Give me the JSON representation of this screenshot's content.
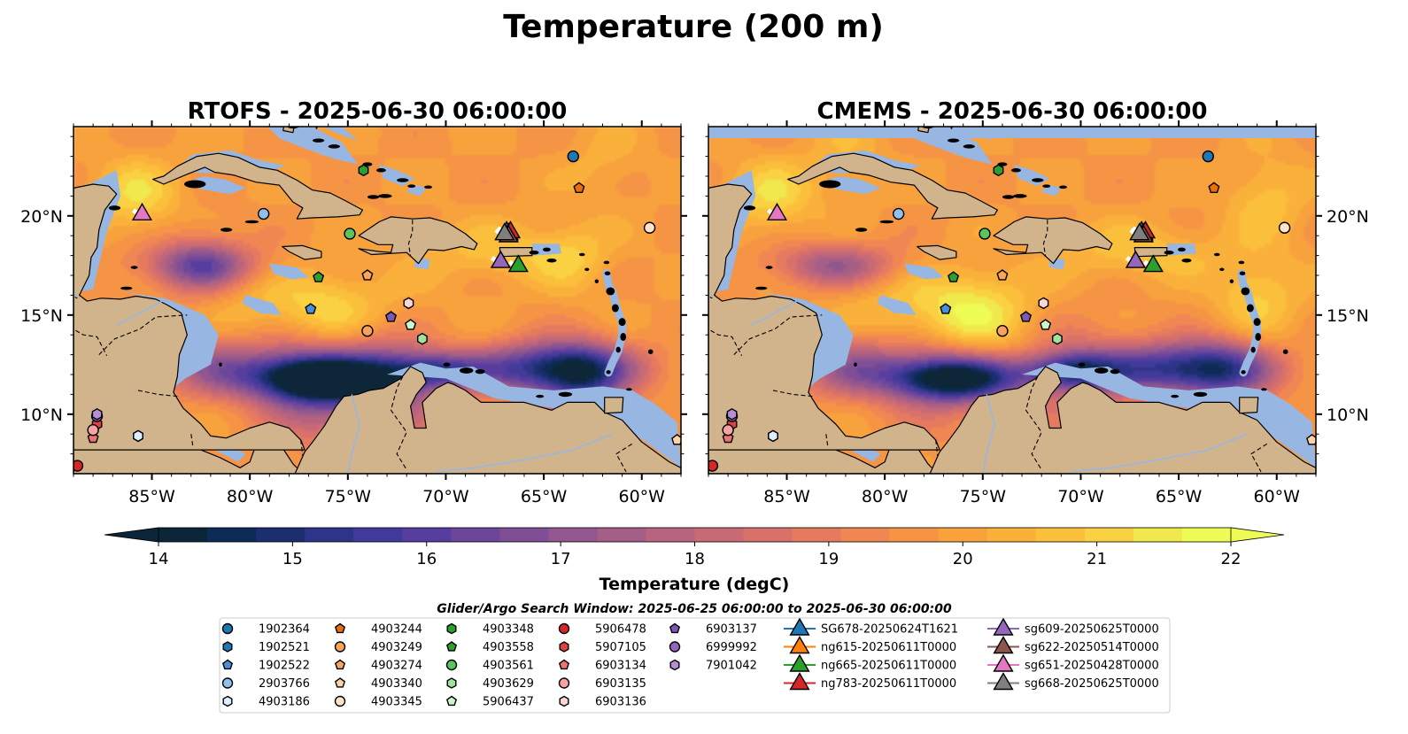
{
  "figure": {
    "suptitle": "Temperature (200 m)",
    "search_window": "Glider/Argo Search Window: 2025-06-25 06:00:00 to 2025-06-30 06:00:00"
  },
  "chart_data": {
    "type": "heatmap",
    "panels": [
      {
        "title": "RTOFS - 2025-06-30 06:00:00",
        "ylabel_side": "left",
        "noise": [
          {
            "lon": -76.5,
            "lat": 12.0,
            "dt": -3.0,
            "r": 3.0
          },
          {
            "lon": -73.0,
            "lat": 11.3,
            "dt": -2.5,
            "r": 2.6
          },
          {
            "lon": -63.0,
            "lat": 11.5,
            "dt": -2.2,
            "r": 2.0
          },
          {
            "lon": -82.5,
            "lat": 17.5,
            "dt": -1.2,
            "r": 2.0
          },
          {
            "lon": -76.0,
            "lat": 14.2,
            "dt": 1.0,
            "r": 2.2
          },
          {
            "lon": -63.5,
            "lat": 17.8,
            "dt": 0.8,
            "r": 1.8
          },
          {
            "lon": -62.0,
            "lat": 22.5,
            "dt": 0.5,
            "r": 2.0
          }
        ]
      },
      {
        "title": "CMEMS - 2025-06-30 06:00:00",
        "ylabel_side": "right",
        "noise": [
          {
            "lon": -76.5,
            "lat": 12.3,
            "dt": -1.6,
            "r": 3.0
          },
          {
            "lon": -70.0,
            "lat": 12.0,
            "dt": -1.4,
            "r": 2.8
          },
          {
            "lon": -62.5,
            "lat": 12.0,
            "dt": -1.2,
            "r": 2.0
          },
          {
            "lon": -75.5,
            "lat": 14.5,
            "dt": 1.2,
            "r": 2.4
          },
          {
            "lon": -61.0,
            "lat": 16.0,
            "dt": 1.2,
            "r": 2.2
          },
          {
            "lon": -60.5,
            "lat": 21.0,
            "dt": 1.0,
            "r": 2.0
          },
          {
            "lon": -82.0,
            "lat": 23.0,
            "dt": 0.6,
            "r": 2.0
          }
        ]
      }
    ],
    "xlim": [
      -89.0,
      -58.0
    ],
    "ylim": [
      7.0,
      24.5
    ],
    "xticks": [
      -85,
      -80,
      -75,
      -70,
      -65,
      -60
    ],
    "xtick_labels": [
      "85°W",
      "80°W",
      "75°W",
      "70°W",
      "65°W",
      "60°W"
    ],
    "yticks": [
      10,
      15,
      20
    ],
    "ytick_labels": [
      "10°N",
      "15°N",
      "20°N"
    ],
    "colorbar": {
      "label": "Temperature (degC)",
      "vmin": 14,
      "vmax": 22,
      "ticks": [
        14,
        15,
        16,
        17,
        18,
        19,
        20,
        21,
        22
      ],
      "tick_labels": [
        "14",
        "15",
        "16",
        "17",
        "18",
        "19",
        "20",
        "21",
        "22"
      ],
      "extend": "both",
      "colors": [
        "#0a2638",
        "#0d2c55",
        "#1b2f6e",
        "#2e3488",
        "#423a9a",
        "#563e9f",
        "#6b469b",
        "#7f4f95",
        "#92578e",
        "#a55e86",
        "#b8647e",
        "#c86a74",
        "#d8716a",
        "#e57a5e",
        "#f08752",
        "#f59445",
        "#f8a23c",
        "#fab13a",
        "#fbc03b",
        "#f9d142",
        "#f0e94e",
        "#eefc55"
      ]
    },
    "colors": {
      "land": "#d2b48c",
      "shelf": "#97b6e1",
      "coast": "#000000",
      "river": "#97b6e1"
    },
    "argo": [
      {
        "id": "1902364",
        "lon": -63.5,
        "lat": 23.0,
        "marker": "circle",
        "color": "#1f77b4"
      },
      {
        "id": "1902521",
        "lon": -85.7,
        "lat": 8.9,
        "marker": "hexagon",
        "color": "#1f77b4"
      },
      {
        "id": "1902522",
        "lon": -76.9,
        "lat": 15.3,
        "marker": "pentagon",
        "color": "#4a90d9"
      },
      {
        "id": "2903766",
        "lon": -79.3,
        "lat": 20.1,
        "marker": "circle",
        "color": "#8fc1ea"
      },
      {
        "id": "4903186",
        "lon": -85.7,
        "lat": 8.9,
        "marker": "hexagon",
        "color": "#deeeff"
      },
      {
        "id": "4903244",
        "lon": -63.2,
        "lat": 21.4,
        "marker": "pentagon",
        "color": "#e86f0c"
      },
      {
        "id": "4903249",
        "lon": -74.0,
        "lat": 14.2,
        "marker": "circle",
        "color": "#f7a35c"
      },
      {
        "id": "4903274",
        "lon": -74.0,
        "lat": 17.0,
        "marker": "pentagon",
        "color": "#f9a65a"
      },
      {
        "id": "4903340",
        "lon": -58.2,
        "lat": 8.7,
        "marker": "pentagon",
        "color": "#fbd3a6"
      },
      {
        "id": "4903345",
        "lon": -59.6,
        "lat": 19.4,
        "marker": "circle",
        "color": "#fde4cb"
      },
      {
        "id": "4903348",
        "lon": -74.2,
        "lat": 22.3,
        "marker": "hexagon",
        "color": "#2ca02c"
      },
      {
        "id": "4903558",
        "lon": -76.5,
        "lat": 16.9,
        "marker": "pentagon",
        "color": "#2ca02c"
      },
      {
        "id": "4903561",
        "lon": -74.9,
        "lat": 19.1,
        "marker": "circle",
        "color": "#5cc45c"
      },
      {
        "id": "4903629",
        "lon": -71.2,
        "lat": 13.8,
        "marker": "hexagon",
        "color": "#9fe29f"
      },
      {
        "id": "5906437",
        "lon": -71.8,
        "lat": 14.5,
        "marker": "pentagon",
        "color": "#ccf5cc"
      },
      {
        "id": "5906478",
        "lon": -88.8,
        "lat": 7.4,
        "marker": "circle",
        "color": "#d62728"
      },
      {
        "id": "5907105",
        "lon": -87.8,
        "lat": 9.5,
        "marker": "hexagon",
        "color": "#e04040"
      },
      {
        "id": "6903134",
        "lon": -88.0,
        "lat": 8.8,
        "marker": "pentagon",
        "color": "#f07474"
      },
      {
        "id": "6903135",
        "lon": -88.0,
        "lat": 9.2,
        "marker": "circle",
        "color": "#f5a3a3"
      },
      {
        "id": "6903136",
        "lon": -71.9,
        "lat": 15.6,
        "marker": "hexagon",
        "color": "#fcd6d6"
      },
      {
        "id": "6903137",
        "lon": -72.8,
        "lat": 14.9,
        "marker": "pentagon",
        "color": "#7e57b5"
      },
      {
        "id": "6999992",
        "lon": -87.8,
        "lat": 9.9,
        "marker": "circle",
        "color": "#9467bd"
      },
      {
        "id": "7901042",
        "lon": -87.8,
        "lat": 10.0,
        "marker": "hexagon",
        "color": "#b58fd6"
      }
    ],
    "gliders": [
      {
        "id": "SG678-20250624T1621",
        "lon": -66.9,
        "lat": 19.3,
        "color": "#1f77b4"
      },
      {
        "id": "ng615-20250611T0000",
        "lon": -66.8,
        "lat": 19.2,
        "color": "#ff7f0e"
      },
      {
        "id": "ng665-20250611T0000",
        "lon": -66.3,
        "lat": 17.6,
        "color": "#2ca02c"
      },
      {
        "id": "ng783-20250611T0000",
        "lon": -66.7,
        "lat": 19.3,
        "color": "#d62728"
      },
      {
        "id": "sg609-20250625T0000",
        "lon": -67.2,
        "lat": 17.8,
        "color": "#9467bd"
      },
      {
        "id": "sg622-20250514T0000",
        "lon": -66.8,
        "lat": 19.1,
        "color": "#8c564b"
      },
      {
        "id": "sg651-20250428T0000",
        "lon": -85.5,
        "lat": 20.2,
        "color": "#e377c2"
      },
      {
        "id": "sg668-20250625T0000",
        "lon": -67.0,
        "lat": 19.2,
        "color": "#7f7f7f"
      }
    ]
  }
}
